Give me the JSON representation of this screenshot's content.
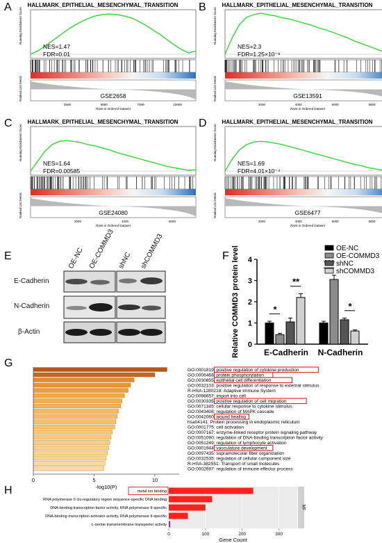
{
  "panels": {
    "A": "A",
    "B": "B",
    "C": "C",
    "D": "D",
    "E": "E",
    "F": "F",
    "G": "G",
    "H": "H"
  },
  "gsea": [
    {
      "title": "HALLMARK_EPITHELIAL_MESENCHYMAL_TRANSITION",
      "nes": "NES=1.47",
      "fdr": "FDR=0.01",
      "dataset": "GSE2658",
      "ylabel_top": "Running Enrichment Score",
      "ylabel_bottom": "Ranked List Metric",
      "xlabel": "Rank in Ordered Dataset",
      "xticks": [
        "2500",
        "5000",
        "7500",
        "10000"
      ],
      "curve": [
        0,
        0.05,
        0.12,
        0.2,
        0.28,
        0.36,
        0.43,
        0.49,
        0.54,
        0.58,
        0.6,
        0.61,
        0.6,
        0.58,
        0.55,
        0.5,
        0.44,
        0.37,
        0.3,
        0.22,
        0.14,
        0.07,
        0.02,
        0.05
      ]
    },
    {
      "title": "HALLMARK_EPITHELIAL_MESENCHYMAL_TRANSITION",
      "nes": "NES=2.3",
      "fdr": "FDR=1.25×10⁻⁹",
      "dataset": "GSE13591",
      "ylabel_top": "Running Enrichment Score",
      "ylabel_bottom": "Ranked List Metric",
      "xlabel": "Rank in Ordered Dataset",
      "xticks": [
        "2000",
        "4000",
        "6000",
        "8000"
      ],
      "curve": [
        0,
        0.25,
        0.45,
        0.56,
        0.6,
        0.62,
        0.6,
        0.58,
        0.55,
        0.53,
        0.5,
        0.47,
        0.44,
        0.4,
        0.37,
        0.33,
        0.29,
        0.25,
        0.2,
        0.16,
        0.12,
        0.08,
        0.04,
        0.07
      ]
    },
    {
      "title": "HALLMARK_EPITHELIAL_MESENCHYMAL_TRANSITION",
      "nes": "NES=1.64",
      "fdr": "FDR=0.00585",
      "dataset": "GSE24080",
      "ylabel_top": "Running Enrichment Score",
      "ylabel_bottom": "Ranked List Metric",
      "xlabel": "Rank in Ordered Dataset",
      "xticks": [
        "2000",
        "4000",
        "6000"
      ],
      "curve": [
        0,
        0.15,
        0.3,
        0.4,
        0.45,
        0.46,
        0.45,
        0.43,
        0.4,
        0.38,
        0.35,
        0.32,
        0.28,
        0.25,
        0.22,
        0.19,
        0.16,
        0.13,
        0.1,
        0.07,
        0.05,
        0.03,
        0.01,
        0.02
      ]
    },
    {
      "title": "HALLMARK_EPITHELIAL_MESENCHYMAL_TRANSITION",
      "nes": "NES=1.69",
      "fdr": "FDR=4.01×10⁻⁴",
      "dataset": "GSE6477",
      "ylabel_top": "Running Enrichment Score",
      "ylabel_bottom": "Ranked List Metric",
      "xlabel": "Rank in Ordered Dataset",
      "xticks": [
        "2000",
        "4000",
        "6000",
        "8000"
      ],
      "curve": [
        0,
        0.18,
        0.32,
        0.4,
        0.44,
        0.45,
        0.44,
        0.42,
        0.4,
        0.37,
        0.34,
        0.31,
        0.28,
        0.25,
        0.22,
        0.19,
        0.16,
        0.13,
        0.1,
        0.08,
        0.05,
        0.03,
        0.01,
        0.02
      ]
    }
  ],
  "western": {
    "lanes_left": [
      "OE-NC",
      "OE-COMMD3"
    ],
    "lanes_right": [
      "shNC",
      "shCOMMD3"
    ],
    "rows": [
      "E-Cadherin",
      "N-Cadherin",
      "β-Actin"
    ]
  },
  "chart_data": [
    {
      "type": "bar",
      "ylabel": "Relative COMMD3 protein level",
      "categories": [
        "E-Cadherin",
        "N-Cadherin"
      ],
      "ylim": [
        0,
        4
      ],
      "yticks": [
        "0",
        "1",
        "2",
        "3",
        "4"
      ],
      "series": [
        {
          "name": "OE-NC",
          "values": [
            1.0,
            1.0
          ],
          "err": [
            0.08,
            0.08
          ],
          "color": "#000000"
        },
        {
          "name": "OE-COMMD3",
          "values": [
            0.45,
            3.05
          ],
          "err": [
            0.06,
            0.2
          ],
          "color": "#8c8c8c"
        },
        {
          "name": "shNC",
          "values": [
            1.05,
            1.15
          ],
          "err": [
            0.18,
            0.08
          ],
          "color": "#555555"
        },
        {
          "name": "shCOMMD3",
          "values": [
            2.2,
            0.62
          ],
          "err": [
            0.18,
            0.05
          ],
          "color": "#d0d0d0"
        }
      ],
      "significance": [
        {
          "label": "*",
          "group": 0,
          "pair": "left"
        },
        {
          "label": "**",
          "group": 0,
          "pair": "right"
        },
        {
          "label": "***",
          "group": 1,
          "pair": "left"
        },
        {
          "label": "*",
          "group": 1,
          "pair": "right"
        }
      ]
    },
    {
      "type": "bar",
      "orientation": "horizontal",
      "xlabel": "-log10(P)",
      "xlim": [
        0,
        12
      ],
      "xticks": [
        "0",
        "5",
        "10"
      ],
      "categories": [
        "GO:0001819: positive regulation of cytokine production",
        "GO:0006468: protein phosphorylation",
        "GO:0030855: epithelial cell differentiation",
        "GO:0032103: positive regulation of response to external stimulus",
        "R-HSA-1280218: Adaptive Immune System",
        "GO:0098657: import into cell",
        "GO:0030335: positive regulation of cell migration",
        "GO:0071345: cellular response to cytokine stimulus",
        "GO:0043408: regulation of MAPK cascade",
        "GO:0042060: wound healing",
        "hsa04141: Protein processing in endoplasmic reticulum",
        "GO:0001775: cell activation",
        "GO:0007167: enzyme-linked receptor protein signaling pathway",
        "GO:0051090: regulation of DNA-binding transcription factor activity",
        "GO:0051249: regulation of lymphocyte activation",
        "GO:0001944: vasculature development",
        "GO:0097435: supramolecular fiber organization",
        "GO:0032535: regulation of cellular component size",
        "R-HSA-382551: Transport of small molecules",
        "GO:0002697: regulation of immune effector process"
      ],
      "values": [
        11.0,
        10.0,
        8.3,
        8.0,
        7.8,
        7.5,
        7.3,
        7.2,
        7.0,
        6.9,
        6.8,
        6.7,
        6.5,
        6.4,
        6.3,
        6.2,
        6.1,
        6.0,
        5.9,
        5.8
      ],
      "highlighted": [
        0,
        1,
        2,
        6,
        9,
        15
      ]
    },
    {
      "type": "bar",
      "orientation": "horizontal",
      "xlabel": "Gene Count",
      "xlim": [
        0,
        350
      ],
      "xticks": [
        "0",
        "100",
        "200",
        "300"
      ],
      "facet": "MF",
      "categories": [
        "metal ion binding",
        "RNA polymerase II cis-regulatory region sequence-specific DNA binding",
        "DNA-binding transcription factor activity, RNA polymerase II-specific",
        "DNA-binding transcription activator activity, RNA polymerase II-specific",
        "L-serine transmembrane transporter activity"
      ],
      "values": [
        230,
        118,
        100,
        52,
        4
      ],
      "colors": [
        "#ff2020",
        "#ff2020",
        "#ff2020",
        "#ff2020",
        "#8b2fd6"
      ],
      "highlighted": [
        0
      ]
    }
  ]
}
